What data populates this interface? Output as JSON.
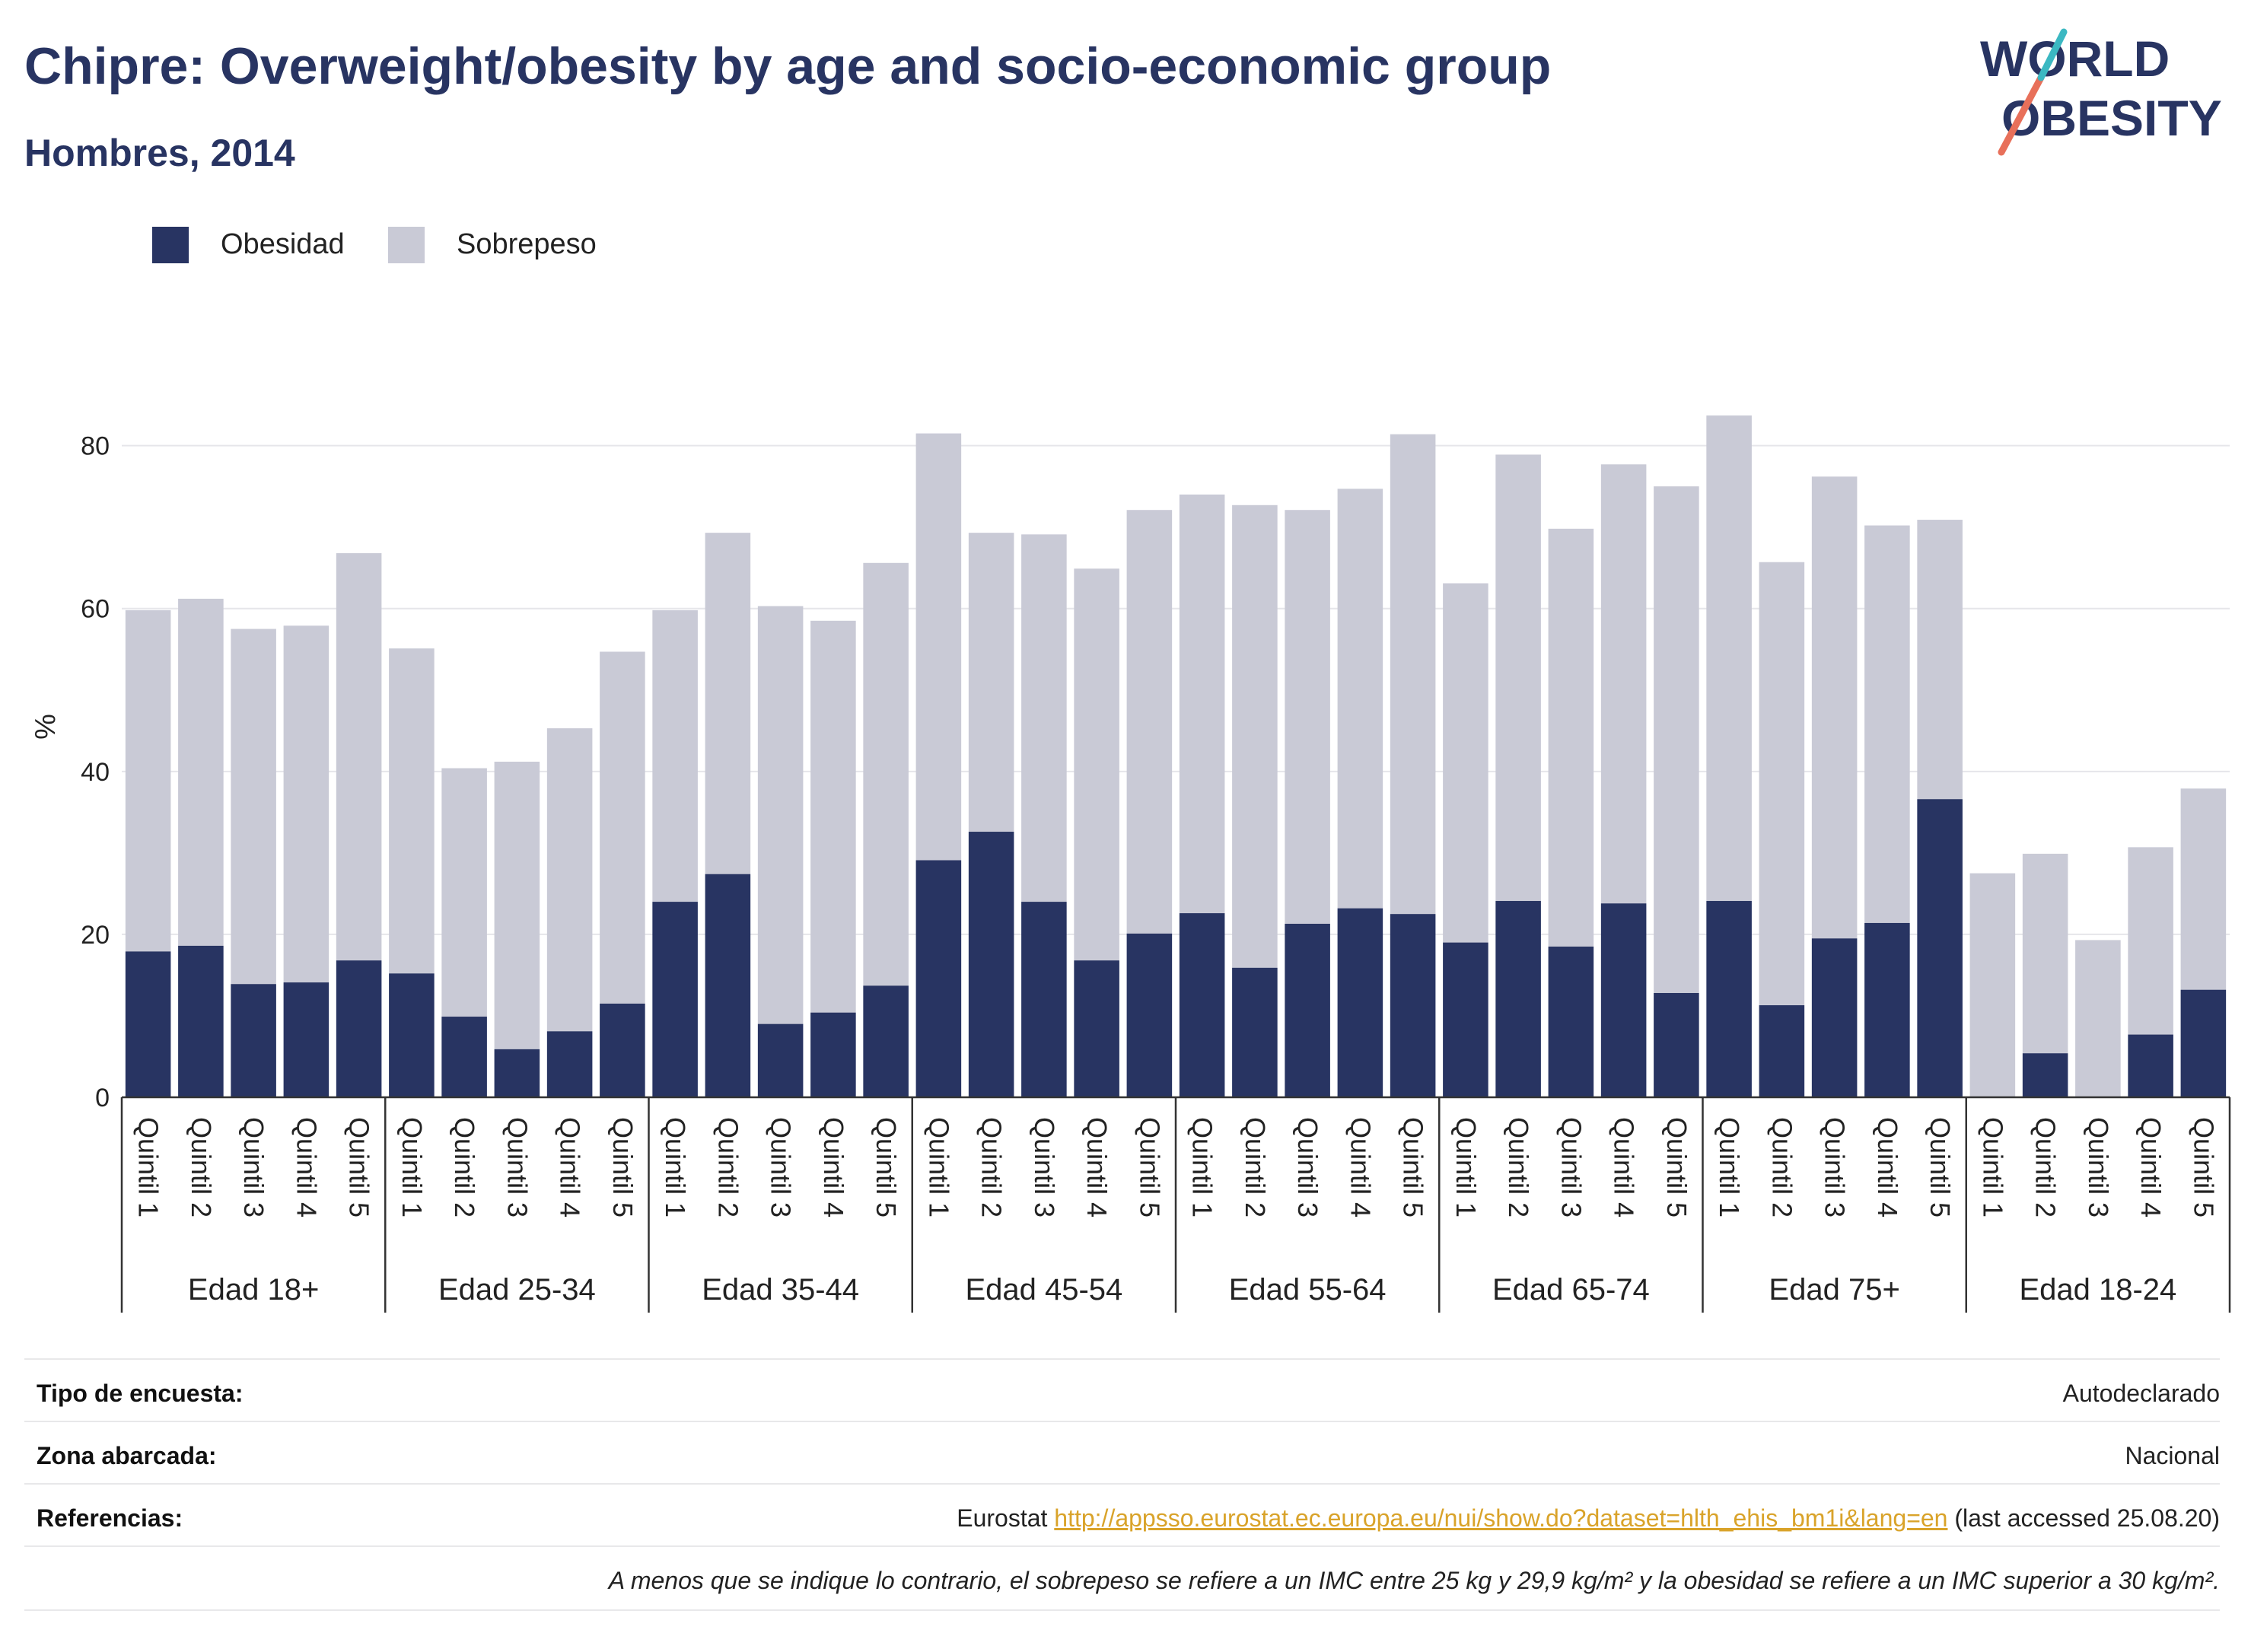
{
  "header": {
    "title": "Chipre: Overweight/obesity by age and socio-economic group",
    "subtitle": "Hombres, 2014"
  },
  "logo": {
    "line1": "WORLD",
    "line2": "OBESITY"
  },
  "legend": [
    {
      "label": "Obesidad",
      "color": "#283462"
    },
    {
      "label": "Sobrepeso",
      "color": "#c9cad6"
    }
  ],
  "chart_data": {
    "type": "bar",
    "stacked": true,
    "ylabel": "%",
    "ylim": [
      0,
      88
    ],
    "yticks": [
      0,
      20,
      40,
      60,
      80
    ],
    "grid": true,
    "legend_position": "top-left",
    "groups": [
      "Edad 18+",
      "Edad 25-34",
      "Edad 35-44",
      "Edad 45-54",
      "Edad 55-64",
      "Edad 65-74",
      "Edad 75+",
      "Edad 18-24"
    ],
    "categories": [
      "Quintil 1",
      "Quintil 2",
      "Quintil 3",
      "Quintil 4",
      "Quintil 5"
    ],
    "series": [
      {
        "name": "Obesidad",
        "color": "#283462",
        "values": [
          [
            17.9,
            18.6,
            13.9,
            14.1,
            16.8
          ],
          [
            15.2,
            9.9,
            5.9,
            8.1,
            11.5
          ],
          [
            24.0,
            27.4,
            9.0,
            10.4,
            13.7
          ],
          [
            29.1,
            32.6,
            24.0,
            16.8,
            20.1
          ],
          [
            22.6,
            15.9,
            21.3,
            23.2,
            22.5
          ],
          [
            19.0,
            24.1,
            18.5,
            23.8,
            12.8
          ],
          [
            24.1,
            11.3,
            19.5,
            21.4,
            36.6
          ],
          [
            0.0,
            5.4,
            0.0,
            7.7,
            13.2
          ]
        ]
      },
      {
        "name": "Sobrepeso",
        "color": "#c9cad6",
        "values": [
          [
            41.9,
            42.6,
            43.6,
            43.8,
            50.0
          ],
          [
            39.9,
            30.5,
            35.3,
            37.2,
            43.2
          ],
          [
            35.8,
            41.9,
            51.3,
            48.1,
            51.9
          ],
          [
            52.4,
            36.7,
            45.1,
            48.1,
            52.0
          ],
          [
            51.4,
            56.8,
            50.8,
            51.5,
            58.9
          ],
          [
            44.1,
            54.8,
            51.3,
            53.9,
            62.2
          ],
          [
            59.6,
            54.4,
            56.7,
            48.8,
            34.3
          ],
          [
            27.5,
            24.5,
            19.3,
            23.0,
            24.7
          ]
        ]
      }
    ]
  },
  "footer": {
    "rows": [
      {
        "key": "Tipo de encuesta:",
        "value": "Autodeclarado"
      },
      {
        "key": "Zona abarcada:",
        "value": "Nacional"
      }
    ],
    "references": {
      "key": "Referencias:",
      "prefix": "Eurostat ",
      "link": "http://appsso.eurostat.ec.europa.eu/nui/show.do?dataset=hlth_ehis_bm1i&lang=en",
      "suffix": " (last accessed 25.08.20)"
    },
    "note": "A menos que se indique lo contrario, el sobrepeso se refiere a un IMC entre 25 kg y 29,9 kg/m² y la obesidad se refiere a un IMC superior a 30 kg/m²."
  }
}
